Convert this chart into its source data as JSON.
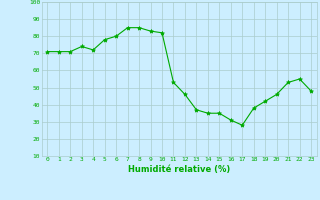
{
  "x": [
    0,
    1,
    2,
    3,
    4,
    5,
    6,
    7,
    8,
    9,
    10,
    11,
    12,
    13,
    14,
    15,
    16,
    17,
    18,
    19,
    20,
    21,
    22,
    23
  ],
  "y": [
    71,
    71,
    71,
    74,
    72,
    78,
    80,
    85,
    85,
    83,
    82,
    53,
    46,
    37,
    35,
    35,
    31,
    28,
    38,
    42,
    46,
    53,
    55,
    48
  ],
  "line_color": "#00aa00",
  "marker": "*",
  "marker_size": 3,
  "bg_color": "#cceeff",
  "grid_color": "#aacccc",
  "xlabel": "Humidité relative (%)",
  "xlabel_color": "#00aa00",
  "tick_color": "#00aa00",
  "ylim": [
    10,
    100
  ],
  "yticks": [
    10,
    20,
    30,
    40,
    50,
    60,
    70,
    80,
    90,
    100
  ],
  "xlim": [
    -0.5,
    23.5
  ],
  "xticks": [
    0,
    1,
    2,
    3,
    4,
    5,
    6,
    7,
    8,
    9,
    10,
    11,
    12,
    13,
    14,
    15,
    16,
    17,
    18,
    19,
    20,
    21,
    22,
    23
  ]
}
